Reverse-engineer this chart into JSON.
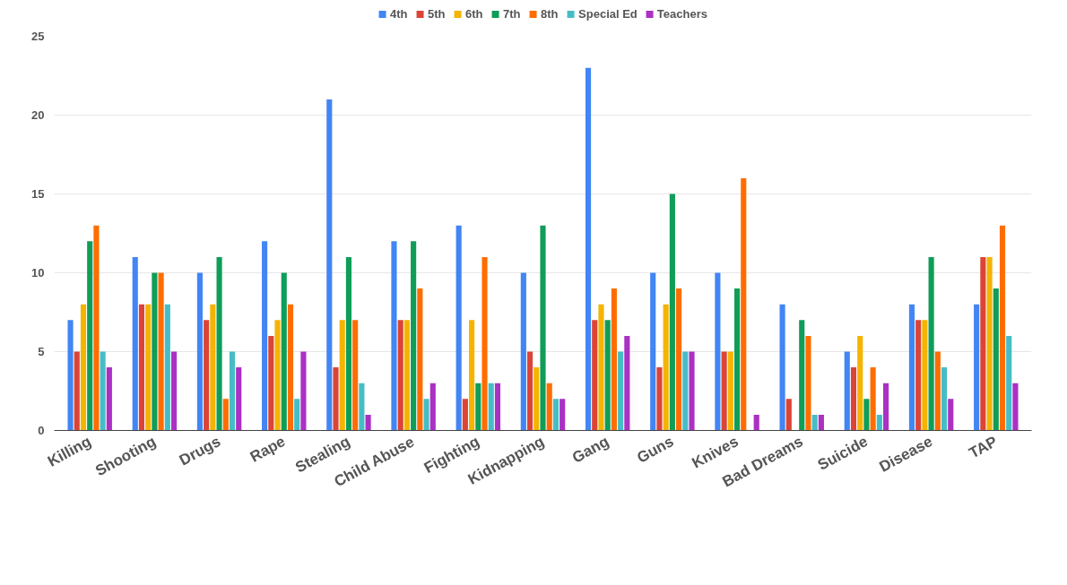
{
  "chart_data": {
    "type": "bar",
    "categories": [
      "Killing",
      "Shooting",
      "Drugs",
      "Rape",
      "Stealing",
      "Child Abuse",
      "Fighting",
      "Kidnapping",
      "Gang",
      "Guns",
      "Knives",
      "Bad Dreams",
      "Suicide",
      "Disease",
      "TAP"
    ],
    "series": [
      {
        "name": "4th",
        "color": "#4285f4",
        "values": [
          7,
          11,
          10,
          12,
          21,
          12,
          13,
          10,
          23,
          10,
          10,
          8,
          5,
          8,
          8
        ]
      },
      {
        "name": "5th",
        "color": "#db4437",
        "values": [
          5,
          8,
          7,
          6,
          4,
          7,
          2,
          5,
          7,
          4,
          5,
          2,
          4,
          7,
          11
        ]
      },
      {
        "name": "6th",
        "color": "#f4b400",
        "values": [
          8,
          8,
          8,
          7,
          7,
          7,
          7,
          4,
          8,
          8,
          5,
          0,
          6,
          7,
          11
        ]
      },
      {
        "name": "7th",
        "color": "#0f9d58",
        "values": [
          12,
          10,
          11,
          10,
          11,
          12,
          3,
          13,
          7,
          15,
          9,
          7,
          2,
          11,
          9
        ]
      },
      {
        "name": "8th",
        "color": "#ff6d00",
        "values": [
          13,
          10,
          2,
          8,
          7,
          9,
          11,
          3,
          9,
          9,
          16,
          6,
          4,
          5,
          13
        ]
      },
      {
        "name": "Special Ed",
        "color": "#46bdc6",
        "values": [
          5,
          8,
          5,
          2,
          3,
          2,
          3,
          2,
          5,
          5,
          0,
          1,
          1,
          4,
          6
        ]
      },
      {
        "name": "Teachers",
        "color": "#ab30c4",
        "values": [
          4,
          5,
          4,
          5,
          1,
          3,
          3,
          2,
          6,
          5,
          1,
          1,
          3,
          2,
          3
        ]
      }
    ],
    "ylim": [
      0,
      25
    ],
    "yticks": [
      0,
      5,
      10,
      15,
      20,
      25
    ],
    "grid": "y",
    "legend": "top"
  }
}
